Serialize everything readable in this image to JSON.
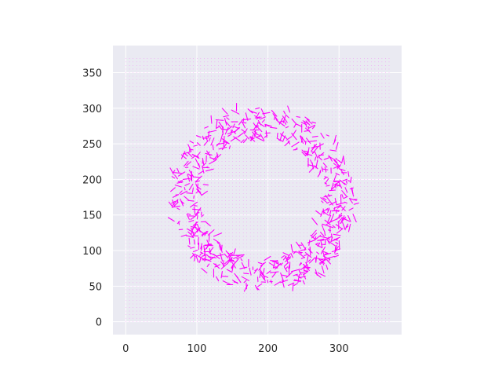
{
  "chart_data": {
    "type": "quiver",
    "title": "",
    "xlabel": "",
    "ylabel": "",
    "xlim": [
      -18,
      388
    ],
    "ylim": [
      -18,
      388
    ],
    "x_ticks": [
      0,
      100,
      200,
      300
    ],
    "y_ticks": [
      0,
      50,
      100,
      150,
      200,
      250,
      300,
      350
    ],
    "grid": true,
    "background_color": "#eaeaf2",
    "arrow_color": "#ff00ff",
    "field_grid": {
      "start": 0,
      "end": 370,
      "step": 5
    },
    "ring": {
      "center": [
        192,
        172
      ],
      "inner_radius": 85,
      "outer_radius": 130
    },
    "arrow_count_in_ring": 700
  }
}
